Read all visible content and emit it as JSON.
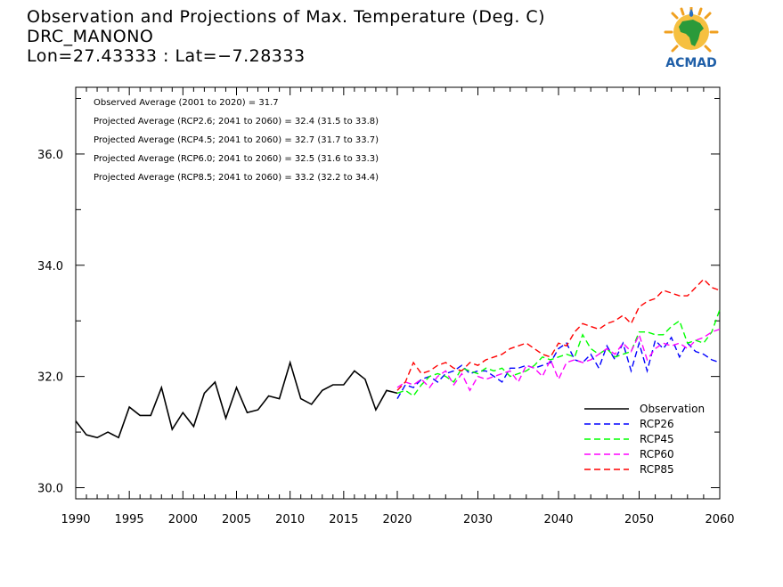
{
  "header": {
    "title": "Observation and Projections of Max. Temperature (Deg. C)",
    "station": "DRC_MANONO",
    "coords": "Lon=27.43333 : Lat=−7.28333"
  },
  "logo": {
    "text": "ACMAD"
  },
  "annotations": [
    "Observed Average (2001 to 2020) = 31.7",
    "Projected Average (RCP2.6; 2041 to 2060) = 32.4 (31.5 to 33.8)",
    "Projected Average (RCP4.5; 2041 to 2060) = 32.7 (31.7 to 33.7)",
    "Projected Average (RCP6.0; 2041 to 2060) = 32.5 (31.6 to 33.3)",
    "Projected Average (RCP8.5; 2041 to 2060) = 33.2 (32.2 to 34.4)"
  ],
  "colors": {
    "Observation": "#000000",
    "RCP26": "#0000ff",
    "RCP45": "#00ff00",
    "RCP60": "#ff00ff",
    "RCP85": "#ff0000"
  },
  "chart_data": {
    "type": "line",
    "y_ticks": [
      30.0,
      32.0,
      34.0,
      36.0
    ],
    "y_tick_labels": [
      "30.0",
      "32.0",
      "34.0",
      "36.0"
    ],
    "ylim": [
      29.8,
      37.2
    ],
    "x_segments": [
      {
        "xlim": [
          1990,
          2020
        ],
        "ticks": [
          1990,
          1995,
          2000,
          2005,
          2010,
          2015,
          2020
        ],
        "tick_labels": [
          "1990",
          "1995",
          "2000",
          "2005",
          "2010",
          "2015",
          "2020"
        ]
      },
      {
        "xlim": [
          2020,
          2060
        ],
        "ticks": [
          2030,
          2040,
          2050,
          2060
        ],
        "tick_labels": [
          "2030",
          "2040",
          "2050",
          "2060"
        ]
      }
    ],
    "legend_position": "bottom-right",
    "series": [
      {
        "name": "Observation",
        "style": "solid",
        "x": [
          1990,
          1991,
          1992,
          1993,
          1994,
          1995,
          1996,
          1997,
          1998,
          1999,
          2000,
          2001,
          2002,
          2003,
          2004,
          2005,
          2006,
          2007,
          2008,
          2009,
          2010,
          2011,
          2012,
          2013,
          2014,
          2015,
          2016,
          2017,
          2018,
          2019,
          2020
        ],
        "y": [
          31.2,
          30.95,
          30.9,
          31.0,
          30.9,
          31.45,
          31.3,
          31.3,
          31.8,
          31.05,
          31.35,
          31.1,
          31.7,
          31.9,
          31.25,
          31.8,
          31.35,
          31.4,
          31.65,
          31.6,
          32.25,
          31.6,
          31.5,
          31.75,
          31.85,
          31.85,
          32.1,
          31.95,
          31.4,
          31.75,
          31.7
        ]
      },
      {
        "name": "RCP26",
        "style": "dashed",
        "x": [
          2020,
          2021,
          2022,
          2023,
          2024,
          2025,
          2026,
          2027,
          2028,
          2029,
          2030,
          2031,
          2032,
          2033,
          2034,
          2035,
          2036,
          2037,
          2038,
          2039,
          2040,
          2041,
          2042,
          2043,
          2044,
          2045,
          2046,
          2047,
          2048,
          2049,
          2050,
          2051,
          2052,
          2053,
          2054,
          2055,
          2056,
          2057,
          2058,
          2059,
          2060
        ],
        "y": [
          31.6,
          31.85,
          31.8,
          31.95,
          32.0,
          31.9,
          32.05,
          32.1,
          32.2,
          32.05,
          32.1,
          32.1,
          32.0,
          31.9,
          32.15,
          32.15,
          32.2,
          32.15,
          32.2,
          32.25,
          32.5,
          32.6,
          32.3,
          32.25,
          32.4,
          32.15,
          32.55,
          32.3,
          32.6,
          32.1,
          32.6,
          32.1,
          32.65,
          32.5,
          32.7,
          32.35,
          32.6,
          32.45,
          32.4,
          32.3,
          32.25
        ]
      },
      {
        "name": "RCP45",
        "style": "dashed",
        "x": [
          2020,
          2021,
          2022,
          2023,
          2024,
          2025,
          2026,
          2027,
          2028,
          2029,
          2030,
          2031,
          2032,
          2033,
          2034,
          2035,
          2036,
          2037,
          2038,
          2039,
          2040,
          2041,
          2042,
          2043,
          2044,
          2045,
          2046,
          2047,
          2048,
          2049,
          2050,
          2051,
          2052,
          2053,
          2054,
          2055,
          2056,
          2057,
          2058,
          2059,
          2060
        ],
        "y": [
          31.7,
          31.75,
          31.65,
          31.85,
          32.0,
          32.05,
          32.0,
          31.9,
          32.15,
          32.1,
          32.05,
          32.15,
          32.1,
          32.15,
          32.0,
          32.05,
          32.1,
          32.2,
          32.35,
          32.3,
          32.35,
          32.4,
          32.35,
          32.75,
          32.5,
          32.4,
          32.5,
          32.35,
          32.4,
          32.45,
          32.8,
          32.8,
          32.75,
          32.75,
          32.9,
          33.0,
          32.6,
          32.65,
          32.6,
          32.8,
          33.2
        ]
      },
      {
        "name": "RCP60",
        "style": "dashed",
        "x": [
          2020,
          2021,
          2022,
          2023,
          2024,
          2025,
          2026,
          2027,
          2028,
          2029,
          2030,
          2031,
          2032,
          2033,
          2034,
          2035,
          2036,
          2037,
          2038,
          2039,
          2040,
          2041,
          2042,
          2043,
          2044,
          2045,
          2046,
          2047,
          2048,
          2049,
          2050,
          2051,
          2052,
          2053,
          2054,
          2055,
          2056,
          2057,
          2058,
          2059,
          2060
        ],
        "y": [
          31.8,
          31.9,
          31.85,
          31.95,
          31.8,
          32.0,
          32.1,
          31.85,
          32.05,
          31.75,
          32.0,
          31.95,
          32.0,
          32.05,
          32.1,
          31.9,
          32.2,
          32.15,
          32.0,
          32.3,
          31.95,
          32.25,
          32.3,
          32.25,
          32.3,
          32.4,
          32.5,
          32.4,
          32.6,
          32.45,
          32.75,
          32.3,
          32.5,
          32.6,
          32.55,
          32.6,
          32.5,
          32.65,
          32.7,
          32.8,
          32.85
        ]
      },
      {
        "name": "RCP85",
        "style": "dashed",
        "x": [
          2020,
          2021,
          2022,
          2023,
          2024,
          2025,
          2026,
          2027,
          2028,
          2029,
          2030,
          2031,
          2032,
          2033,
          2034,
          2035,
          2036,
          2037,
          2038,
          2039,
          2040,
          2041,
          2042,
          2043,
          2044,
          2045,
          2046,
          2047,
          2048,
          2049,
          2050,
          2051,
          2052,
          2053,
          2054,
          2055,
          2056,
          2057,
          2058,
          2059,
          2060
        ],
        "y": [
          31.75,
          31.9,
          32.25,
          32.05,
          32.1,
          32.2,
          32.25,
          32.15,
          32.1,
          32.25,
          32.2,
          32.3,
          32.35,
          32.4,
          32.5,
          32.55,
          32.6,
          32.5,
          32.4,
          32.35,
          32.6,
          32.55,
          32.8,
          32.95,
          32.9,
          32.85,
          32.95,
          33.0,
          33.1,
          32.95,
          33.25,
          33.35,
          33.4,
          33.55,
          33.5,
          33.45,
          33.45,
          33.6,
          33.75,
          33.6,
          33.55
        ]
      }
    ]
  }
}
